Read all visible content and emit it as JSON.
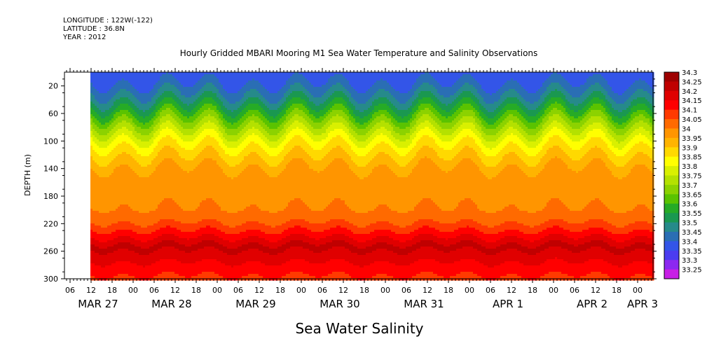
{
  "header": {
    "longitude": "LONGITUDE : 122W(-122)",
    "latitude": "LATITUDE : 36.8N",
    "year": "YEAR : 2012"
  },
  "chart_data": {
    "type": "heatmap",
    "title": "Hourly Gridded MBARI Mooring M1 Sea Water Temperature and Salinity Observations",
    "xlabel": "Sea Water Salinity",
    "ylabel": "DEPTH (m)",
    "y_reversed": true,
    "ylim": [
      300,
      0
    ],
    "y_ticks": [
      20,
      60,
      100,
      140,
      180,
      220,
      260,
      300
    ],
    "x_hour_ticks": [
      "06",
      "12",
      "18",
      "00",
      "06",
      "12",
      "18",
      "00",
      "06",
      "12",
      "18",
      "00",
      "06",
      "12",
      "18",
      "00",
      "06",
      "12",
      "18",
      "00",
      "06",
      "12",
      "18",
      "00",
      "06",
      "12",
      "18",
      "00",
      "06",
      "12",
      "18",
      "00"
    ],
    "x_day_labels": [
      "MAR 27",
      "MAR 28",
      "MAR 29",
      "MAR 30",
      "MAR 31",
      "APR  1",
      "APR  2",
      "APR  3"
    ],
    "data_start_label": "12",
    "colorbar": {
      "levels": [
        "34.3",
        "34.25",
        "34.2",
        "34.15",
        "34.1",
        "34.05",
        "34",
        "33.95",
        "33.9",
        "33.85",
        "33.8",
        "33.75",
        "33.7",
        "33.65",
        "33.6",
        "33.55",
        "33.5",
        "33.45",
        "33.4",
        "33.35",
        "33.3",
        "33.25"
      ],
      "colors": [
        "#9e0000",
        "#c00000",
        "#e00000",
        "#ff0000",
        "#ff3a00",
        "#ff6a00",
        "#ff9500",
        "#ffb400",
        "#ffd900",
        "#ffff00",
        "#d9f000",
        "#b4e100",
        "#8cd200",
        "#5ac300",
        "#26ab26",
        "#1a9850",
        "#268a8a",
        "#2a6eb4",
        "#3355e8",
        "#4b3cf0",
        "#8c28f0",
        "#c81ee6"
      ]
    },
    "profile": {
      "depths": [
        5,
        15,
        25,
        40,
        55,
        70,
        85,
        100,
        115,
        130,
        145,
        165,
        190,
        210,
        222,
        235,
        250,
        265,
        282,
        300
      ],
      "salinity": [
        33.42,
        33.45,
        33.48,
        33.55,
        33.63,
        33.72,
        33.8,
        33.88,
        33.93,
        33.98,
        34.02,
        34.03,
        34.04,
        34.07,
        34.12,
        34.18,
        34.26,
        34.24,
        34.17,
        34.14
      ]
    },
    "variability": {
      "diurnal_amplitude_m": 12,
      "note": ""
    },
    "grid": false
  }
}
